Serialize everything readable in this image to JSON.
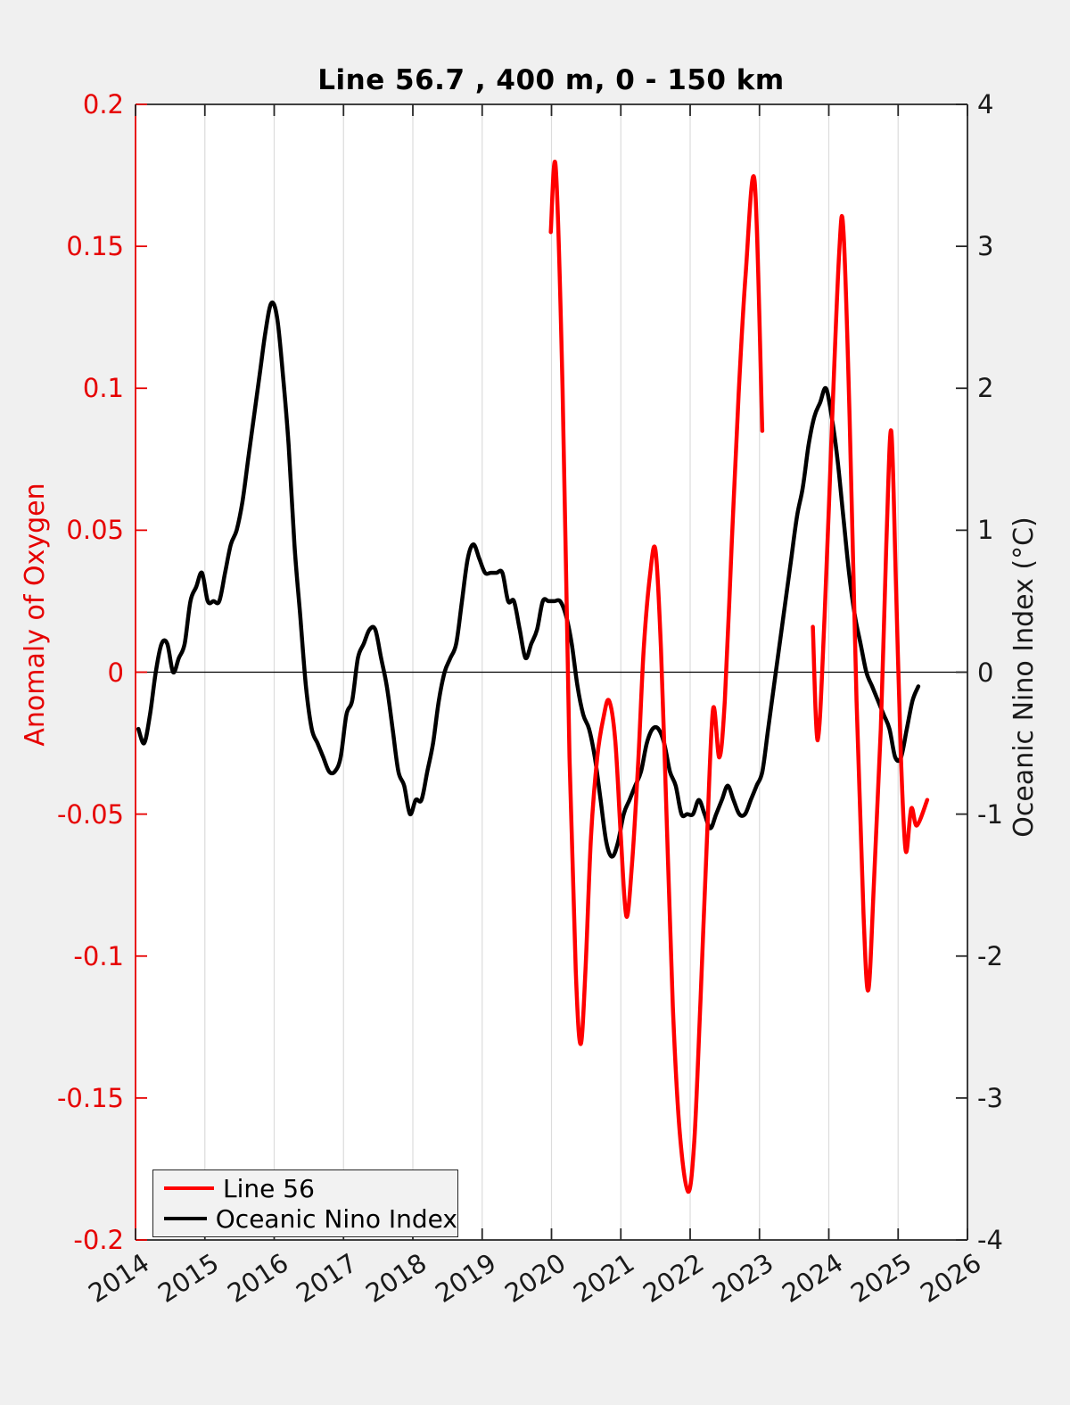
{
  "figure": {
    "title": "Line 56.7 , 400 m, 0 - 150 km",
    "background_color": "#f0f0f0",
    "plot_background_color": "#ffffff"
  },
  "axes": {
    "left": {
      "label": "Anomaly of Oxygen",
      "color": "#e60000",
      "tick_labels": [
        "0.2",
        "0.15",
        "0.1",
        "0.05",
        "0",
        "-0.05",
        "-0.1",
        "-0.15",
        "-0.2"
      ],
      "tick_values": [
        0.2,
        0.15,
        0.1,
        0.05,
        0,
        -0.05,
        -0.1,
        -0.15,
        -0.2
      ],
      "range": [
        -0.2,
        0.2
      ]
    },
    "right": {
      "label": "Oceanic Nino Index (°C)",
      "color": "#1a1a1a",
      "tick_labels": [
        "4",
        "3",
        "2",
        "1",
        "0",
        "-1",
        "-2",
        "-3",
        "-4"
      ],
      "tick_values": [
        4,
        3,
        2,
        1,
        0,
        -1,
        -2,
        -3,
        -4
      ],
      "range": [
        -4,
        4
      ]
    },
    "x": {
      "tick_labels": [
        "2014",
        "2015",
        "2016",
        "2017",
        "2018",
        "2019",
        "2020",
        "2021",
        "2022",
        "2023",
        "2024",
        "2025",
        "2026"
      ],
      "tick_values": [
        2014,
        2015,
        2016,
        2017,
        2018,
        2019,
        2020,
        2021,
        2022,
        2023,
        2024,
        2025,
        2026
      ],
      "range": [
        2014,
        2026
      ]
    }
  },
  "legend": {
    "items": [
      {
        "label": "Line 56",
        "color": "#ff0000"
      },
      {
        "label": "Oceanic Nino Index",
        "color": "#000000"
      }
    ],
    "position": "southwest"
  },
  "chart_data": {
    "type": "line",
    "title": "Line 56.7 , 400 m, 0 - 150 km",
    "xlabel": "",
    "x_range": [
      2014,
      2026
    ],
    "left_ylabel": "Anomaly of Oxygen",
    "left_ylim": [
      -0.2,
      0.2
    ],
    "right_ylabel": "Oceanic Nino Index (°C)",
    "right_ylim": [
      -4,
      4
    ],
    "xgrid": true,
    "ygrid": false,
    "zero_line": true,
    "legend_position": "southwest",
    "series": [
      {
        "name": "Line 56",
        "yaxis": "left",
        "color": "#ff0000",
        "line_width": 4.5,
        "segments": [
          [
            [
              2019.99,
              0.155
            ],
            [
              2020.06,
              0.178
            ],
            [
              2020.16,
              0.1
            ],
            [
              2020.26,
              -0.03
            ],
            [
              2020.35,
              -0.105
            ],
            [
              2020.42,
              -0.131
            ],
            [
              2020.49,
              -0.105
            ],
            [
              2020.57,
              -0.058
            ],
            [
              2020.66,
              -0.03
            ],
            [
              2020.75,
              -0.016
            ],
            [
              2020.83,
              -0.01
            ],
            [
              2020.92,
              -0.024
            ],
            [
              2021.0,
              -0.058
            ],
            [
              2021.08,
              -0.086
            ],
            [
              2021.16,
              -0.068
            ],
            [
              2021.25,
              -0.032
            ],
            [
              2021.33,
              0.008
            ],
            [
              2021.42,
              0.034
            ],
            [
              2021.5,
              0.043
            ],
            [
              2021.58,
              0.008
            ],
            [
              2021.67,
              -0.058
            ],
            [
              2021.75,
              -0.118
            ],
            [
              2021.85,
              -0.162
            ],
            [
              2021.97,
              -0.183
            ],
            [
              2022.06,
              -0.165
            ],
            [
              2022.15,
              -0.115
            ],
            [
              2022.24,
              -0.06
            ],
            [
              2022.33,
              -0.013
            ],
            [
              2022.42,
              -0.03
            ],
            [
              2022.5,
              -0.01
            ],
            [
              2022.6,
              0.045
            ],
            [
              2022.7,
              0.098
            ],
            [
              2022.8,
              0.14
            ],
            [
              2022.93,
              0.173
            ],
            [
              2023.04,
              0.085
            ]
          ],
          [
            [
              2023.77,
              0.016
            ],
            [
              2023.84,
              -0.024
            ],
            [
              2023.94,
              0.02
            ],
            [
              2024.05,
              0.09
            ],
            [
              2024.15,
              0.148
            ],
            [
              2024.21,
              0.156
            ],
            [
              2024.3,
              0.09
            ],
            [
              2024.4,
              -0.01
            ],
            [
              2024.5,
              -0.085
            ],
            [
              2024.57,
              -0.112
            ],
            [
              2024.65,
              -0.075
            ],
            [
              2024.75,
              -0.02
            ],
            [
              2024.83,
              0.045
            ],
            [
              2024.9,
              0.085
            ],
            [
              2024.97,
              0.03
            ],
            [
              2025.04,
              -0.03
            ],
            [
              2025.11,
              -0.063
            ],
            [
              2025.19,
              -0.048
            ],
            [
              2025.27,
              -0.054
            ],
            [
              2025.42,
              -0.045
            ]
          ]
        ]
      },
      {
        "name": "Oceanic Nino Index",
        "yaxis": "right",
        "color": "#000000",
        "line_width": 4.5,
        "start_year": 2014,
        "cadence": "monthly",
        "monthly_values": [
          -0.4,
          -0.5,
          -0.3,
          0.0,
          0.2,
          0.2,
          0.0,
          0.1,
          0.2,
          0.5,
          0.6,
          0.7,
          0.5,
          0.5,
          0.5,
          0.7,
          0.9,
          1.0,
          1.2,
          1.5,
          1.8,
          2.1,
          2.4,
          2.6,
          2.5,
          2.1,
          1.6,
          0.9,
          0.4,
          -0.1,
          -0.4,
          -0.5,
          -0.6,
          -0.7,
          -0.7,
          -0.6,
          -0.3,
          -0.2,
          0.1,
          0.2,
          0.3,
          0.3,
          0.1,
          -0.1,
          -0.4,
          -0.7,
          -0.8,
          -1.0,
          -0.9,
          -0.9,
          -0.7,
          -0.5,
          -0.2,
          0.0,
          0.1,
          0.2,
          0.5,
          0.8,
          0.9,
          0.8,
          0.7,
          0.7,
          0.7,
          0.7,
          0.5,
          0.5,
          0.3,
          0.1,
          0.2,
          0.3,
          0.5,
          0.5,
          0.5,
          0.5,
          0.4,
          0.2,
          -0.1,
          -0.3,
          -0.4,
          -0.6,
          -0.9,
          -1.2,
          -1.3,
          -1.2,
          -1.0,
          -0.9,
          -0.8,
          -0.7,
          -0.5,
          -0.4,
          -0.4,
          -0.5,
          -0.7,
          -0.8,
          -1.0,
          -1.0,
          -1.0,
          -0.9,
          -1.0,
          -1.1,
          -1.0,
          -0.9,
          -0.8,
          -0.9,
          -1.0,
          -1.0,
          -0.9,
          -0.8,
          -0.7,
          -0.4,
          -0.1,
          0.2,
          0.5,
          0.8,
          1.1,
          1.3,
          1.6,
          1.8,
          1.9,
          2.0,
          1.8,
          1.5,
          1.1,
          0.7,
          0.4,
          0.2,
          0.0,
          -0.1,
          -0.2,
          -0.3,
          -0.4,
          -0.6,
          -0.6,
          -0.4,
          -0.2,
          -0.1
        ]
      }
    ]
  }
}
